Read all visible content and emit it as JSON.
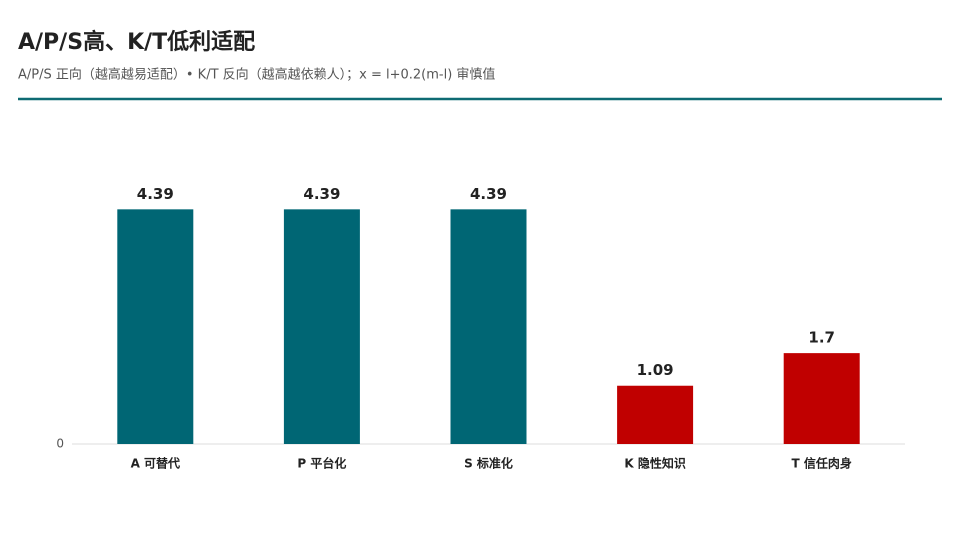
{
  "chart_data": {
    "type": "bar",
    "title": "A/P/S高、K/T低利适配",
    "subtitle": "A/P/S 正向（越高越易适配）• K/T 反向（越高越依赖人）；x = l+0.2(m-l) 审慎值",
    "categories": [
      "A 可替代",
      "P 平台化",
      "S 标准化",
      "K 隐性知识",
      "T 信任肉身"
    ],
    "values": [
      4.39,
      4.39,
      4.39,
      1.09,
      1.7
    ],
    "colors": [
      "#006674",
      "#006674",
      "#006674",
      "#c00000",
      "#c00000"
    ],
    "ylim": [
      0,
      5.5
    ],
    "yticks": [
      0
    ],
    "grid": false
  }
}
